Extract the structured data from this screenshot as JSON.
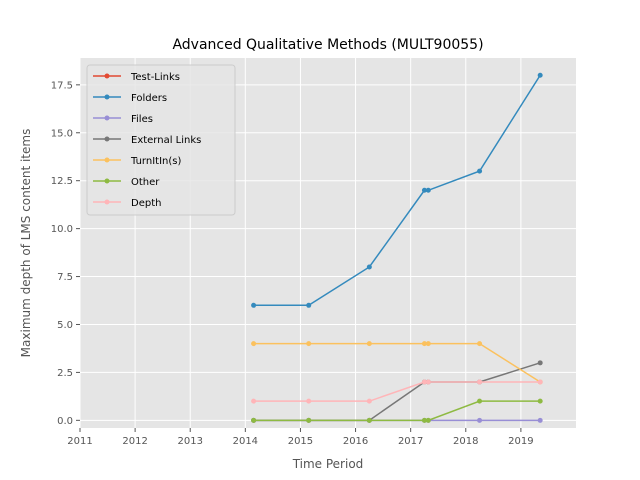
{
  "chart_data": {
    "type": "line",
    "title": "Advanced Qualitative Methods (MULT90055)",
    "xlabel": "Time Period",
    "ylabel": "Maximum depth of LMS content items",
    "xlim": [
      2011,
      2020
    ],
    "ylim": [
      -0.4,
      18.9
    ],
    "x_ticks": [
      "2011",
      "2012",
      "2013",
      "2014",
      "2015",
      "2016",
      "2017",
      "2018",
      "2019"
    ],
    "y_ticks": [
      "0.0",
      "2.5",
      "5.0",
      "7.5",
      "10.0",
      "12.5",
      "15.0",
      "17.5"
    ],
    "grid": true,
    "legend_position": "top-left",
    "series": [
      {
        "name": "Test-Links",
        "color": "#e24a33",
        "x": [],
        "y": []
      },
      {
        "name": "Folders",
        "color": "#348abd",
        "x": [
          2014.15,
          2015.15,
          2016.25,
          2017.25,
          2017.32,
          2018.25,
          2019.35
        ],
        "y": [
          6,
          6,
          8,
          12,
          12,
          13,
          18
        ]
      },
      {
        "name": "Files",
        "color": "#988ed5",
        "x": [
          2014.15,
          2015.15,
          2016.25,
          2017.25,
          2017.32,
          2018.25,
          2019.35
        ],
        "y": [
          0,
          0,
          0,
          0,
          0,
          0,
          0
        ]
      },
      {
        "name": "External Links",
        "color": "#777777",
        "x": [
          2014.15,
          2015.15,
          2016.25,
          2017.25,
          2017.32,
          2018.25,
          2019.35
        ],
        "y": [
          0,
          0,
          0,
          2,
          2,
          2,
          3
        ]
      },
      {
        "name": "TurnItIn(s)",
        "color": "#fbc15e",
        "x": [
          2014.15,
          2015.15,
          2016.25,
          2017.25,
          2017.32,
          2018.25,
          2019.35
        ],
        "y": [
          4,
          4,
          4,
          4,
          4,
          4,
          2
        ]
      },
      {
        "name": "Other",
        "color": "#8eba42",
        "x": [
          2014.15,
          2015.15,
          2016.25,
          2017.25,
          2017.32,
          2018.25,
          2019.35
        ],
        "y": [
          0,
          0,
          0,
          0,
          0,
          1,
          1
        ]
      },
      {
        "name": "Depth",
        "color": "#ffb5b8",
        "x": [
          2014.15,
          2015.15,
          2016.25,
          2017.25,
          2017.32,
          2018.25,
          2019.35
        ],
        "y": [
          1,
          1,
          1,
          2,
          2,
          2,
          2
        ]
      }
    ]
  }
}
